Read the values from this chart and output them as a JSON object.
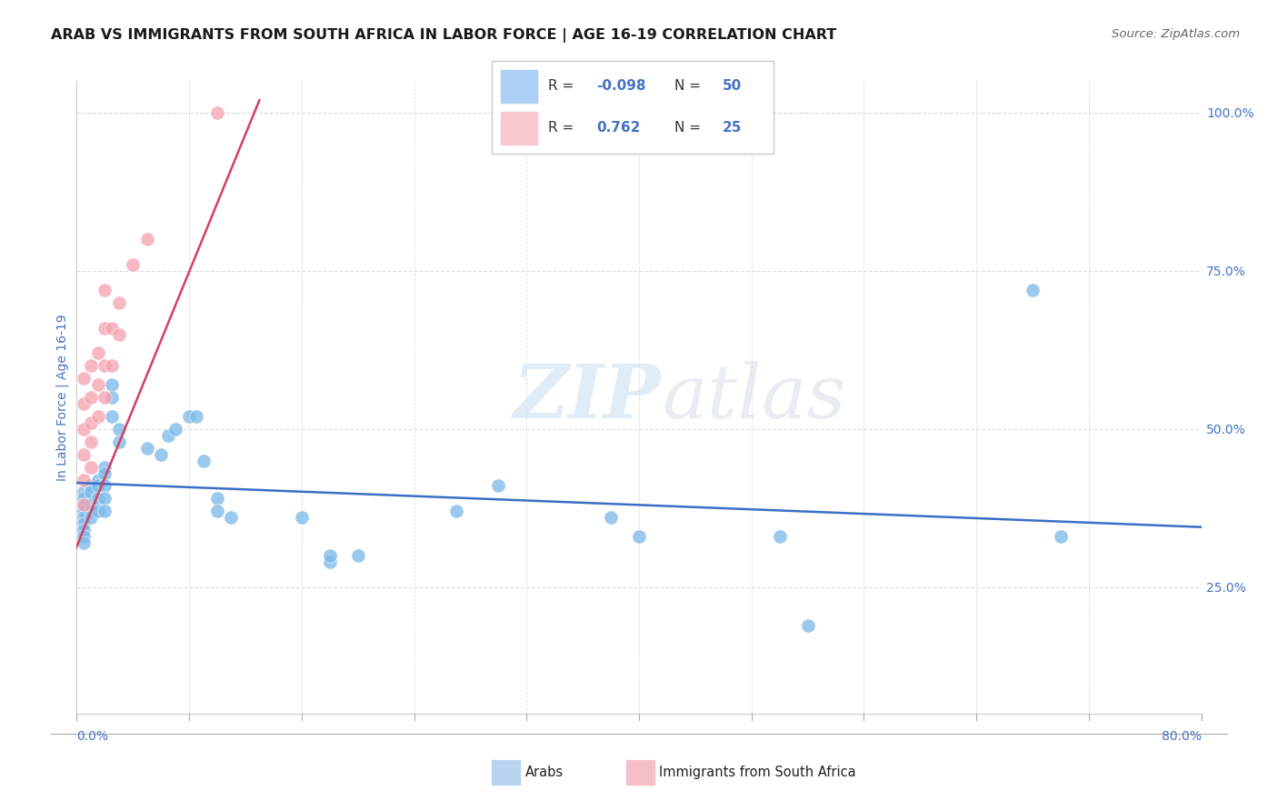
{
  "title": "ARAB VS IMMIGRANTS FROM SOUTH AFRICA IN LABOR FORCE | AGE 16-19 CORRELATION CHART",
  "source": "Source: ZipAtlas.com",
  "ylabel": "In Labor Force | Age 16-19",
  "ylabel_right_labels": [
    "100.0%",
    "75.0%",
    "50.0%",
    "25.0%"
  ],
  "ylabel_right_values": [
    1.0,
    0.75,
    0.5,
    0.25
  ],
  "watermark_zip": "ZIP",
  "watermark_atlas": "atlas",
  "xlim": [
    0.0,
    0.8
  ],
  "ylim": [
    0.05,
    1.05
  ],
  "arab_scatter_x": [
    0.005,
    0.005,
    0.005,
    0.005,
    0.005,
    0.005,
    0.005,
    0.005,
    0.005,
    0.01,
    0.01,
    0.01,
    0.01,
    0.01,
    0.015,
    0.015,
    0.015,
    0.015,
    0.02,
    0.02,
    0.02,
    0.02,
    0.02,
    0.025,
    0.025,
    0.025,
    0.03,
    0.03,
    0.05,
    0.06,
    0.065,
    0.07,
    0.08,
    0.085,
    0.09,
    0.1,
    0.1,
    0.11,
    0.16,
    0.18,
    0.18,
    0.2,
    0.27,
    0.3,
    0.38,
    0.4,
    0.5,
    0.52,
    0.68,
    0.7
  ],
  "arab_scatter_y": [
    0.4,
    0.39,
    0.38,
    0.37,
    0.36,
    0.35,
    0.34,
    0.33,
    0.32,
    0.41,
    0.4,
    0.38,
    0.37,
    0.36,
    0.42,
    0.41,
    0.39,
    0.37,
    0.44,
    0.43,
    0.41,
    0.39,
    0.37,
    0.57,
    0.55,
    0.52,
    0.5,
    0.48,
    0.47,
    0.46,
    0.49,
    0.5,
    0.52,
    0.52,
    0.45,
    0.39,
    0.37,
    0.36,
    0.36,
    0.29,
    0.3,
    0.3,
    0.37,
    0.41,
    0.36,
    0.33,
    0.33,
    0.19,
    0.72,
    0.33
  ],
  "immigrant_scatter_x": [
    0.005,
    0.005,
    0.005,
    0.005,
    0.005,
    0.005,
    0.01,
    0.01,
    0.01,
    0.01,
    0.01,
    0.015,
    0.015,
    0.015,
    0.02,
    0.02,
    0.02,
    0.02,
    0.025,
    0.025,
    0.03,
    0.03,
    0.04,
    0.05,
    0.1
  ],
  "immigrant_scatter_y": [
    0.38,
    0.42,
    0.46,
    0.5,
    0.54,
    0.58,
    0.44,
    0.48,
    0.51,
    0.55,
    0.6,
    0.52,
    0.57,
    0.62,
    0.55,
    0.6,
    0.66,
    0.72,
    0.6,
    0.66,
    0.65,
    0.7,
    0.76,
    0.8,
    1.0
  ],
  "arab_line_x": [
    0.0,
    0.8
  ],
  "arab_line_y": [
    0.415,
    0.345
  ],
  "immigrant_line_x": [
    -0.01,
    0.13
  ],
  "immigrant_line_y": [
    0.26,
    1.02
  ],
  "arab_scatter_color": "#7ab8e8",
  "immigrant_scatter_color": "#f5a0b0",
  "arab_line_color": "#3a6fc4",
  "immigrant_line_color": "#d44060",
  "legend_arab_color": "#aecff5",
  "legend_imm_color": "#f9c8d0",
  "title_color": "#1a1a1a",
  "source_color": "#666666",
  "axis_label_color": "#4472c4",
  "tick_color": "#4472c4",
  "grid_color": "#dddddd",
  "background_color": "#ffffff",
  "bottom_legend_arab_color": "#b8d4f0",
  "bottom_legend_imm_color": "#f5c0ca"
}
